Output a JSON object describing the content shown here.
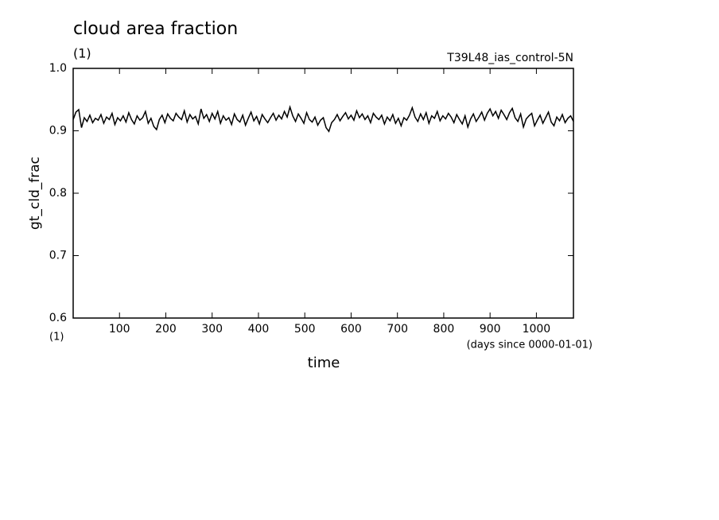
{
  "chart_data": {
    "type": "line",
    "title": "cloud area fraction",
    "title_units": "(1)",
    "experiment": "T39L48_ias_control-5N",
    "ylabel": "gt_cld_frac",
    "y_units": "(1)",
    "xlabel": "time",
    "x_units": "(days since 0000-01-01)",
    "color": "#000000",
    "xlim": [
      0,
      1080
    ],
    "xticks": [
      100,
      200,
      300,
      400,
      500,
      600,
      700,
      800,
      900,
      1000
    ],
    "ylim": [
      0.6,
      1
    ],
    "yticks": [
      0.6,
      0.7,
      0.8,
      0.9,
      {
        "value": 1,
        "label": "1.0"
      }
    ],
    "x": [
      0,
      6,
      12,
      18,
      24,
      30,
      36,
      42,
      48,
      54,
      60,
      66,
      72,
      78,
      84,
      90,
      96,
      102,
      108,
      114,
      120,
      126,
      132,
      138,
      144,
      150,
      156,
      162,
      168,
      174,
      180,
      186,
      192,
      198,
      204,
      210,
      216,
      222,
      228,
      234,
      240,
      246,
      252,
      258,
      264,
      270,
      276,
      282,
      288,
      294,
      300,
      306,
      312,
      318,
      324,
      330,
      336,
      342,
      348,
      354,
      360,
      366,
      372,
      378,
      384,
      390,
      396,
      402,
      408,
      414,
      420,
      426,
      432,
      438,
      444,
      450,
      456,
      462,
      468,
      474,
      480,
      486,
      492,
      498,
      504,
      510,
      516,
      522,
      528,
      534,
      540,
      546,
      552,
      558,
      564,
      570,
      576,
      582,
      588,
      594,
      600,
      606,
      612,
      618,
      624,
      630,
      636,
      642,
      648,
      654,
      660,
      666,
      672,
      678,
      684,
      690,
      696,
      702,
      708,
      714,
      720,
      726,
      732,
      738,
      744,
      750,
      756,
      762,
      768,
      774,
      780,
      786,
      792,
      798,
      804,
      810,
      816,
      822,
      828,
      834,
      840,
      846,
      852,
      858,
      864,
      870,
      876,
      882,
      888,
      894,
      900,
      906,
      912,
      918,
      924,
      930,
      936,
      942,
      948,
      954,
      960,
      966,
      972,
      978,
      984,
      990,
      996,
      1002,
      1008,
      1014,
      1020,
      1026,
      1032,
      1038,
      1044,
      1050,
      1056,
      1062,
      1068,
      1074,
      1080
    ],
    "values": [
      0.918,
      0.93,
      0.934,
      0.905,
      0.921,
      0.915,
      0.925,
      0.913,
      0.92,
      0.917,
      0.926,
      0.912,
      0.922,
      0.918,
      0.928,
      0.91,
      0.921,
      0.916,
      0.924,
      0.914,
      0.929,
      0.918,
      0.911,
      0.924,
      0.917,
      0.921,
      0.931,
      0.912,
      0.92,
      0.907,
      0.902,
      0.918,
      0.925,
      0.913,
      0.927,
      0.92,
      0.916,
      0.928,
      0.922,
      0.918,
      0.932,
      0.914,
      0.926,
      0.919,
      0.923,
      0.911,
      0.935,
      0.92,
      0.926,
      0.915,
      0.928,
      0.919,
      0.931,
      0.912,
      0.924,
      0.917,
      0.921,
      0.91,
      0.927,
      0.918,
      0.914,
      0.925,
      0.909,
      0.92,
      0.93,
      0.916,
      0.923,
      0.911,
      0.926,
      0.919,
      0.913,
      0.921,
      0.928,
      0.917,
      0.925,
      0.919,
      0.931,
      0.922,
      0.938,
      0.924,
      0.915,
      0.927,
      0.92,
      0.912,
      0.929,
      0.918,
      0.914,
      0.922,
      0.909,
      0.917,
      0.921,
      0.905,
      0.899,
      0.913,
      0.918,
      0.926,
      0.916,
      0.923,
      0.929,
      0.919,
      0.925,
      0.917,
      0.932,
      0.921,
      0.927,
      0.918,
      0.924,
      0.913,
      0.928,
      0.922,
      0.918,
      0.925,
      0.911,
      0.922,
      0.916,
      0.926,
      0.912,
      0.92,
      0.908,
      0.921,
      0.917,
      0.925,
      0.937,
      0.922,
      0.915,
      0.927,
      0.918,
      0.929,
      0.912,
      0.924,
      0.92,
      0.931,
      0.916,
      0.924,
      0.919,
      0.928,
      0.922,
      0.913,
      0.926,
      0.918,
      0.911,
      0.924,
      0.906,
      0.919,
      0.927,
      0.915,
      0.922,
      0.93,
      0.917,
      0.928,
      0.935,
      0.924,
      0.931,
      0.92,
      0.933,
      0.926,
      0.918,
      0.929,
      0.936,
      0.921,
      0.915,
      0.927,
      0.906,
      0.919,
      0.924,
      0.928,
      0.908,
      0.917,
      0.925,
      0.912,
      0.921,
      0.93,
      0.914,
      0.908,
      0.922,
      0.916,
      0.926,
      0.913,
      0.92,
      0.924,
      0.915
    ]
  }
}
